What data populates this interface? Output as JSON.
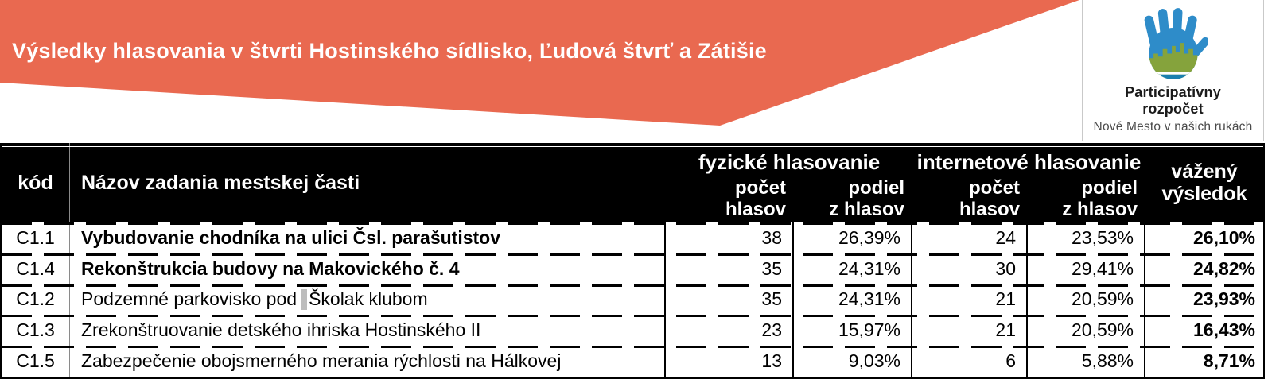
{
  "banner": {
    "title": "Výsledky hlasovania v štvrti Hostinského sídlisko, Ľudová štvrť a Zátišie",
    "bg_color": "#E96950",
    "text_color": "#FFFFFF"
  },
  "logo": {
    "hand_icon": "hand-with-city-icon",
    "hand_blue": "#2E8CC9",
    "hand_green": "#85A33C",
    "hand_teal": "#1B7FAE",
    "title_line1": "Participatívny",
    "title_line2": "rozpočet",
    "tagline": "Nové Mesto v našich rukách"
  },
  "table": {
    "header_bg": "#000000",
    "header_text_color": "#FFFFFF",
    "columns": {
      "code": "kód",
      "name": "Názov zadania mestskej časti",
      "physical_group": "fyzické hlasovanie",
      "internet_group": "internetové hlasovanie",
      "votes_line1": "počet",
      "votes_line2": "hlasov",
      "share_line1": "podiel",
      "share_line2": "z hlasov",
      "weighted_line1": "vážený",
      "weighted_line2": "výsledok"
    },
    "rows": [
      {
        "code": "C1.1",
        "name_parts": [
          "Vybudovanie chodníka na ulici Čsl. parašutistov"
        ],
        "bold": true,
        "phys_votes": "38",
        "phys_share": "26,39%",
        "net_votes": "24",
        "net_share": "23,53%",
        "weighted": "26,10%"
      },
      {
        "code": "C1.4",
        "name_parts": [
          "Rekonštrukcia budovy na Makovického č. 4"
        ],
        "bold": true,
        "phys_votes": "35",
        "phys_share": "24,31%",
        "net_votes": "30",
        "net_share": "29,41%",
        "weighted": "24,82%"
      },
      {
        "code": "C1.2",
        "name_parts": [
          "Podzemné parkovisko pod",
          "Školak klubom"
        ],
        "bold": false,
        "phys_votes": "35",
        "phys_share": "24,31%",
        "net_votes": "21",
        "net_share": "20,59%",
        "weighted": "23,93%"
      },
      {
        "code": "C1.3",
        "name_parts": [
          "Zrekonštruovanie detského ihriska Hostinského II"
        ],
        "bold": false,
        "phys_votes": "23",
        "phys_share": "15,97%",
        "net_votes": "21",
        "net_share": "20,59%",
        "weighted": "16,43%"
      },
      {
        "code": "C1.5",
        "name_parts": [
          "Zabezpečenie obojsmerného merania rýchlosti na Hálkovej"
        ],
        "bold": false,
        "phys_votes": "13",
        "phys_share": "9,03%",
        "net_votes": "6",
        "net_share": "5,88%",
        "weighted": "8,71%"
      }
    ]
  }
}
